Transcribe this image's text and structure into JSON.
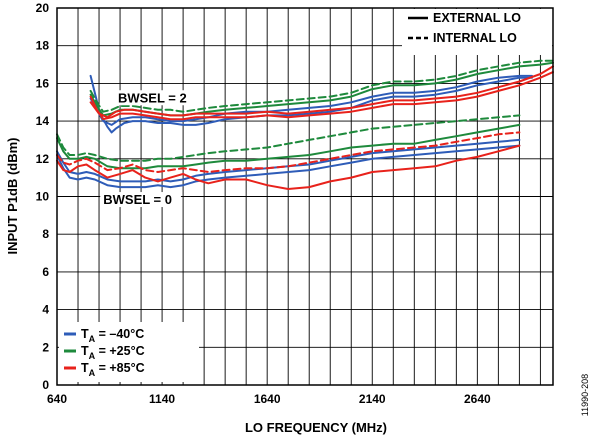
{
  "chart_data": {
    "type": "line",
    "xlabel": "LO FREQUENCY (MHz)",
    "ylabel": "INPUT P1dB (dBm)",
    "xlim": [
      640,
      3000
    ],
    "ylim": [
      0,
      20
    ],
    "xticks": [
      640,
      1140,
      1640,
      2140,
      2640
    ],
    "yticks": [
      0,
      2,
      4,
      6,
      8,
      10,
      12,
      14,
      16,
      18,
      20
    ],
    "grid": true,
    "legend_style": {
      "position": "top-right",
      "entries": [
        {
          "label": "EXTERNAL LO",
          "dash": "solid"
        },
        {
          "label": "INTERNAL LO",
          "dash": "dashed"
        }
      ]
    },
    "legend_temperature": {
      "position": "bottom-left",
      "entries": [
        {
          "label_parts": [
            "T",
            "A",
            " = –40°C"
          ],
          "color": "#2e5cb8"
        },
        {
          "label_parts": [
            "T",
            "A",
            " = +25°C"
          ],
          "color": "#1e8a3c"
        },
        {
          "label_parts": [
            "T",
            "A",
            " = +85°C"
          ],
          "color": "#e8221b"
        }
      ]
    },
    "annotations": [
      {
        "text": "BWSEL = 2",
        "x": 930,
        "y": 15.0
      },
      {
        "text": "BWSEL = 0",
        "x": 860,
        "y": 9.6
      }
    ],
    "figure_id": "11990-208",
    "series": [
      {
        "group": "BWSEL = 2",
        "temp": "-40",
        "color": "#2e5cb8",
        "dash": "solid",
        "x": [
          800,
          820,
          840,
          860,
          880,
          900,
          920,
          960,
          1000,
          1060,
          1120,
          1180,
          1240,
          1300,
          1360,
          1440,
          1540,
          1640,
          1740,
          1840,
          1940,
          2040,
          2140,
          2240,
          2340,
          2440,
          2540,
          2640,
          2740,
          2840,
          2900
        ],
        "y": [
          16.4,
          15.5,
          14.6,
          14.1,
          13.7,
          13.4,
          13.6,
          13.9,
          14.0,
          14.0,
          13.9,
          13.9,
          13.8,
          13.8,
          13.9,
          14.1,
          14.2,
          14.3,
          14.3,
          14.4,
          14.5,
          14.7,
          15.1,
          15.3,
          15.3,
          15.4,
          15.6,
          15.9,
          16.1,
          16.3,
          16.3
        ]
      },
      {
        "group": "BWSEL = 2",
        "temp": "-40",
        "color": "#2e5cb8",
        "dash": "solid",
        "x": [
          800,
          830,
          860,
          900,
          940,
          1000,
          1060,
          1120,
          1180,
          1240,
          1300,
          1360,
          1440,
          1540,
          1640,
          1740,
          1840,
          1940,
          2040,
          2140,
          2240,
          2340,
          2440,
          2540,
          2640,
          2740,
          2840,
          2900
        ],
        "y": [
          15.2,
          14.6,
          14.0,
          13.8,
          14.1,
          14.2,
          14.2,
          14.1,
          14.0,
          14.0,
          14.1,
          14.2,
          14.4,
          14.5,
          14.5,
          14.6,
          14.7,
          14.8,
          15.0,
          15.3,
          15.5,
          15.5,
          15.6,
          15.8,
          16.1,
          16.3,
          16.4,
          16.4
        ]
      },
      {
        "group": "BWSEL = 2",
        "temp": "+25",
        "color": "#1e8a3c",
        "dash": "solid",
        "x": [
          800,
          830,
          860,
          900,
          940,
          1000,
          1060,
          1120,
          1180,
          1240,
          1300,
          1360,
          1440,
          1540,
          1640,
          1740,
          1840,
          1940,
          2040,
          2140,
          2240,
          2340,
          2440,
          2540,
          2640,
          2740,
          2840,
          2940,
          3000
        ],
        "y": [
          15.4,
          14.8,
          14.3,
          14.4,
          14.6,
          14.6,
          14.5,
          14.4,
          14.3,
          14.3,
          14.4,
          14.5,
          14.6,
          14.7,
          14.8,
          14.9,
          15.0,
          15.1,
          15.3,
          15.7,
          15.9,
          15.9,
          16.0,
          16.2,
          16.5,
          16.7,
          16.9,
          17.0,
          17.1
        ]
      },
      {
        "group": "BWSEL = 2",
        "temp": "+25",
        "color": "#1e8a3c",
        "dash": "dashed",
        "x": [
          800,
          830,
          860,
          900,
          940,
          1000,
          1060,
          1120,
          1180,
          1240,
          1300,
          1360,
          1440,
          1540,
          1640,
          1740,
          1840,
          1940,
          2040,
          2140,
          2240,
          2340,
          2440,
          2540,
          2640,
          2740,
          2840,
          2940,
          3000
        ],
        "y": [
          15.6,
          15.0,
          14.5,
          14.6,
          14.8,
          14.8,
          14.7,
          14.6,
          14.6,
          14.5,
          14.6,
          14.7,
          14.8,
          14.9,
          15.0,
          15.1,
          15.2,
          15.3,
          15.5,
          15.9,
          16.1,
          16.1,
          16.2,
          16.4,
          16.7,
          16.9,
          17.1,
          17.2,
          17.2
        ]
      },
      {
        "group": "BWSEL = 2",
        "temp": "+85",
        "color": "#e8221b",
        "dash": "solid",
        "x": [
          800,
          830,
          860,
          900,
          940,
          1000,
          1060,
          1120,
          1180,
          1240,
          1300,
          1360,
          1440,
          1540,
          1640,
          1740,
          1840,
          1940,
          2040,
          2140,
          2240,
          2340,
          2440,
          2540,
          2640,
          2740,
          2840,
          2940,
          3000
        ],
        "y": [
          15.3,
          14.6,
          14.1,
          14.2,
          14.4,
          14.4,
          14.3,
          14.2,
          14.1,
          14.1,
          14.2,
          14.2,
          14.2,
          14.2,
          14.3,
          14.2,
          14.3,
          14.4,
          14.5,
          14.7,
          14.9,
          14.9,
          15.0,
          15.1,
          15.3,
          15.6,
          15.9,
          16.3,
          16.6
        ]
      },
      {
        "group": "BWSEL = 2",
        "temp": "+85",
        "color": "#e8221b",
        "dash": "solid",
        "x": [
          800,
          840,
          880,
          920,
          960,
          1000,
          1060,
          1120,
          1180,
          1240,
          1300,
          1360,
          1440,
          1540,
          1640,
          1740,
          1840,
          1940,
          2040,
          2140,
          2240,
          2340,
          2440,
          2540,
          2640,
          2740,
          2840,
          2940,
          3000
        ],
        "y": [
          15.0,
          14.4,
          14.2,
          14.5,
          14.6,
          14.6,
          14.5,
          14.4,
          14.3,
          14.3,
          14.4,
          14.4,
          14.4,
          14.4,
          14.5,
          14.4,
          14.5,
          14.6,
          14.7,
          14.9,
          15.1,
          15.1,
          15.2,
          15.3,
          15.5,
          15.8,
          16.1,
          16.5,
          16.9
        ]
      },
      {
        "group": "BWSEL = 0",
        "temp": "-40",
        "color": "#2e5cb8",
        "dash": "solid",
        "x": [
          640,
          670,
          700,
          740,
          780,
          820,
          880,
          940,
          1000,
          1060,
          1120,
          1180,
          1240,
          1300,
          1360,
          1440,
          1540,
          1640,
          1740,
          1840,
          1940,
          2040,
          2140,
          2240,
          2340,
          2440,
          2540,
          2640,
          2740,
          2840
        ],
        "y": [
          12.2,
          11.5,
          11.0,
          10.9,
          11.0,
          10.9,
          10.6,
          10.5,
          10.5,
          10.5,
          10.6,
          10.5,
          10.6,
          10.8,
          10.9,
          11.0,
          11.1,
          11.2,
          11.3,
          11.4,
          11.6,
          11.8,
          12.0,
          12.1,
          12.2,
          12.3,
          12.4,
          12.5,
          12.6,
          12.7
        ]
      },
      {
        "group": "BWSEL = 0",
        "temp": "-40",
        "color": "#2e5cb8",
        "dash": "solid",
        "x": [
          640,
          670,
          700,
          740,
          780,
          820,
          880,
          940,
          1000,
          1060,
          1120,
          1180,
          1240,
          1300,
          1360,
          1440,
          1540,
          1640,
          1740,
          1840,
          1940,
          2040,
          2140,
          2240,
          2340,
          2440,
          2540,
          2640,
          2740,
          2840
        ],
        "y": [
          12.4,
          11.8,
          11.3,
          11.2,
          11.3,
          11.2,
          10.9,
          10.8,
          10.8,
          10.8,
          10.9,
          10.8,
          10.9,
          11.1,
          11.2,
          11.3,
          11.4,
          11.5,
          11.6,
          11.7,
          11.9,
          12.1,
          12.3,
          12.4,
          12.5,
          12.6,
          12.7,
          12.8,
          12.9,
          13.0
        ]
      },
      {
        "group": "BWSEL = 0",
        "temp": "+25",
        "color": "#1e8a3c",
        "dash": "solid",
        "x": [
          640,
          670,
          700,
          740,
          780,
          820,
          880,
          940,
          1000,
          1060,
          1120,
          1180,
          1240,
          1300,
          1360,
          1440,
          1540,
          1640,
          1740,
          1840,
          1940,
          2040,
          2140,
          2240,
          2340,
          2440,
          2540,
          2640,
          2740,
          2840
        ],
        "y": [
          13.1,
          12.4,
          12.0,
          12.0,
          12.1,
          12.0,
          11.6,
          11.5,
          11.5,
          11.5,
          11.6,
          11.6,
          11.6,
          11.7,
          11.8,
          11.9,
          11.9,
          12.0,
          12.1,
          12.2,
          12.4,
          12.6,
          12.7,
          12.8,
          12.8,
          13.0,
          13.2,
          13.4,
          13.6,
          13.8
        ]
      },
      {
        "group": "BWSEL = 0",
        "temp": "+25",
        "color": "#1e8a3c",
        "dash": "dashed",
        "x": [
          640,
          670,
          700,
          740,
          780,
          820,
          880,
          940,
          1000,
          1060,
          1120,
          1180,
          1240,
          1300,
          1360,
          1440,
          1540,
          1640,
          1740,
          1840,
          1940,
          2040,
          2140,
          2240,
          2340,
          2440,
          2540,
          2640,
          2740,
          2840
        ],
        "y": [
          13.3,
          12.6,
          12.2,
          12.2,
          12.3,
          12.2,
          12.0,
          11.9,
          11.9,
          11.9,
          12.0,
          12.0,
          12.1,
          12.2,
          12.3,
          12.4,
          12.5,
          12.6,
          12.8,
          13.0,
          13.2,
          13.4,
          13.6,
          13.7,
          13.8,
          13.9,
          14.0,
          14.1,
          14.2,
          14.3
        ]
      },
      {
        "group": "BWSEL = 0",
        "temp": "+85",
        "color": "#e8221b",
        "dash": "solid",
        "x": [
          640,
          670,
          700,
          740,
          780,
          820,
          880,
          940,
          1000,
          1060,
          1120,
          1180,
          1240,
          1300,
          1360,
          1440,
          1540,
          1640,
          1740,
          1840,
          1940,
          2040,
          2140,
          2240,
          2340,
          2440,
          2540,
          2640,
          2740,
          2840
        ],
        "y": [
          11.9,
          11.4,
          11.3,
          11.6,
          11.7,
          11.4,
          11.0,
          11.2,
          11.4,
          11.0,
          10.8,
          11.0,
          11.2,
          10.9,
          10.7,
          10.9,
          10.9,
          10.6,
          10.4,
          10.5,
          10.8,
          11.0,
          11.3,
          11.4,
          11.5,
          11.6,
          11.9,
          12.1,
          12.4,
          12.7
        ]
      },
      {
        "group": "BWSEL = 0",
        "temp": "+85",
        "color": "#e8221b",
        "dash": "dashed",
        "x": [
          640,
          670,
          700,
          740,
          780,
          820,
          880,
          940,
          1000,
          1060,
          1120,
          1180,
          1240,
          1300,
          1360,
          1440,
          1540,
          1640,
          1740,
          1840,
          1940,
          2040,
          2140,
          2240,
          2340,
          2440,
          2540,
          2640,
          2740,
          2840
        ],
        "y": [
          12.2,
          11.8,
          11.7,
          11.9,
          12.0,
          11.8,
          11.4,
          11.5,
          11.7,
          11.4,
          11.3,
          11.4,
          11.5,
          11.4,
          11.3,
          11.4,
          11.5,
          11.5,
          11.6,
          11.8,
          12.0,
          12.2,
          12.4,
          12.5,
          12.6,
          12.7,
          12.9,
          13.1,
          13.3,
          13.4
        ]
      }
    ]
  }
}
